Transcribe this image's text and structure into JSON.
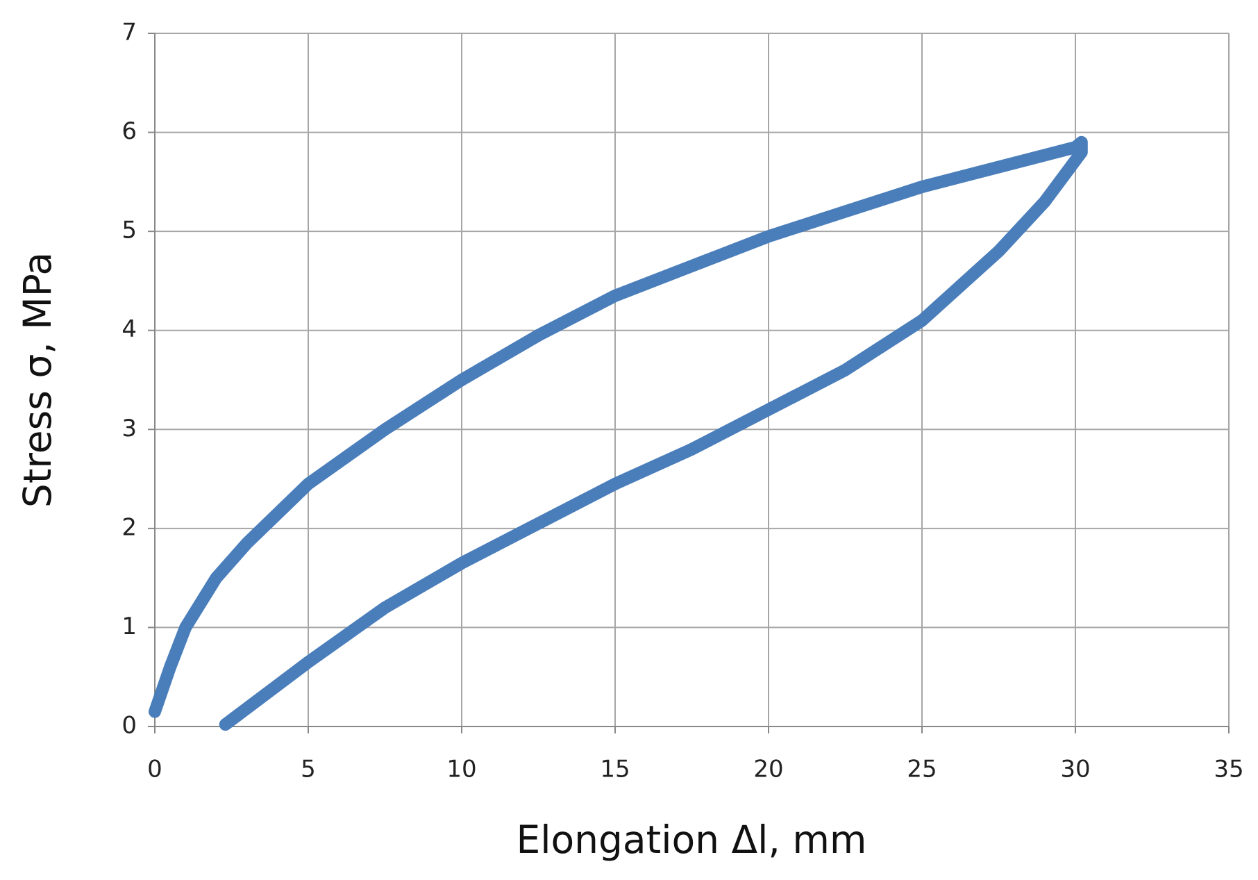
{
  "chart_data": {
    "type": "line",
    "x_label": "Elongation Δl, mm",
    "y_label": "Stress σ, MPa",
    "x": [
      0,
      0.5,
      1,
      2,
      3,
      4,
      5,
      7.5,
      10,
      12.5,
      15,
      17.5,
      20,
      22.5,
      25,
      27.5,
      30,
      30.2,
      30.2,
      29,
      27.5,
      25,
      22.5,
      20,
      17.5,
      15,
      12.5,
      10,
      7.5,
      5,
      3.5,
      2.3
    ],
    "values": [
      0.15,
      0.6,
      1.0,
      1.5,
      1.85,
      2.15,
      2.45,
      3.0,
      3.5,
      3.95,
      4.35,
      4.65,
      4.95,
      5.2,
      5.45,
      5.65,
      5.85,
      5.9,
      5.8,
      5.3,
      4.8,
      4.1,
      3.6,
      3.2,
      2.8,
      2.45,
      2.05,
      1.65,
      1.2,
      0.65,
      0.3,
      0.02
    ],
    "color": "#4a7ebb",
    "xlim": [
      0,
      35
    ],
    "xticks": [
      0,
      5,
      10,
      15,
      20,
      25,
      30,
      35
    ],
    "ylim": [
      0,
      7
    ],
    "yticks": [
      0,
      1,
      2,
      3,
      4,
      5,
      6,
      7
    ],
    "grid": true
  }
}
